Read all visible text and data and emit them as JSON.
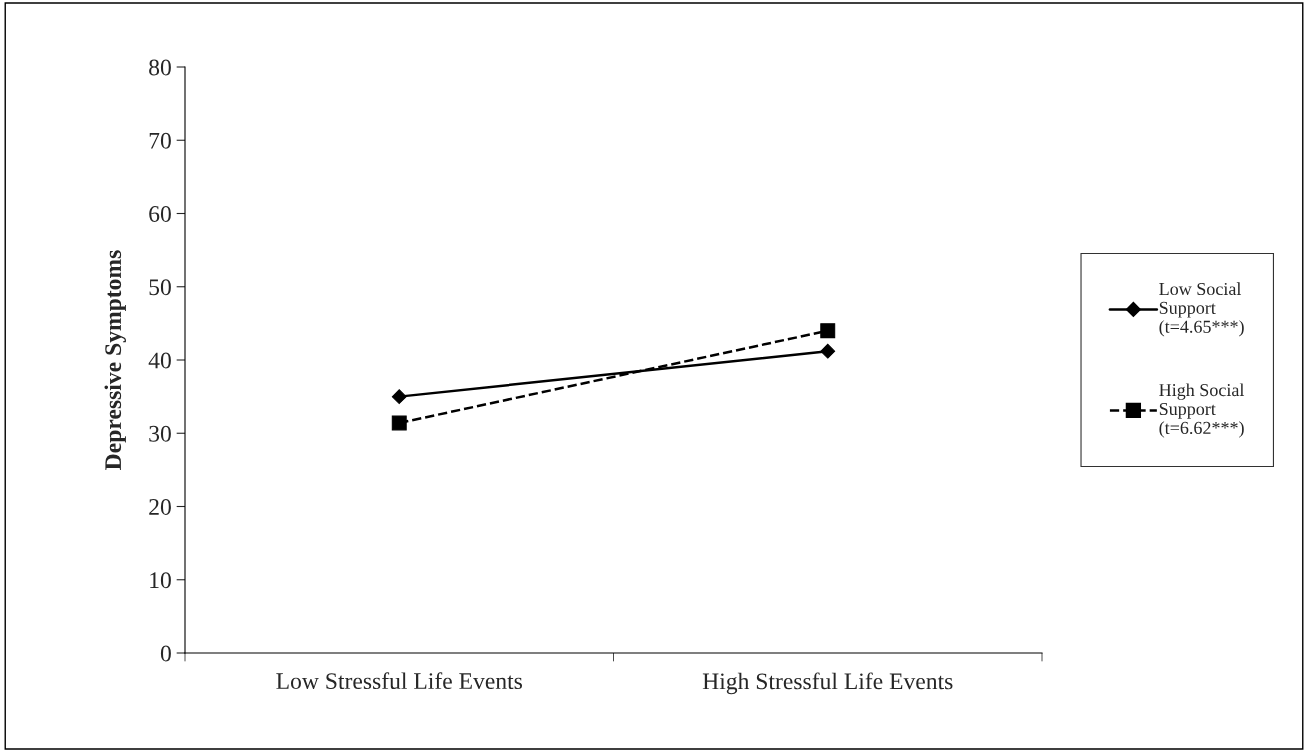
{
  "chart_data": {
    "type": "line",
    "ylabel": "Depressive Symptoms",
    "categories": [
      "Low Stressful Life Events",
      "High Stressful Life Events"
    ],
    "series": [
      {
        "name": "Low Social\nSupport\n(t=4.65***)",
        "color": "#000000",
        "values": [
          35.0,
          41.2
        ],
        "marker": "diamond",
        "line_style": "solid"
      },
      {
        "name": "High Social\nSupport\n(t=6.62***)",
        "color": "#000000",
        "values": [
          31.4,
          44.0
        ],
        "marker": "square",
        "line_style": "dashed"
      }
    ],
    "ylim": [
      0,
      80
    ],
    "yticks": [
      0,
      10,
      20,
      30,
      40,
      50,
      60,
      70,
      80
    ],
    "grid": false,
    "legend": "right"
  }
}
